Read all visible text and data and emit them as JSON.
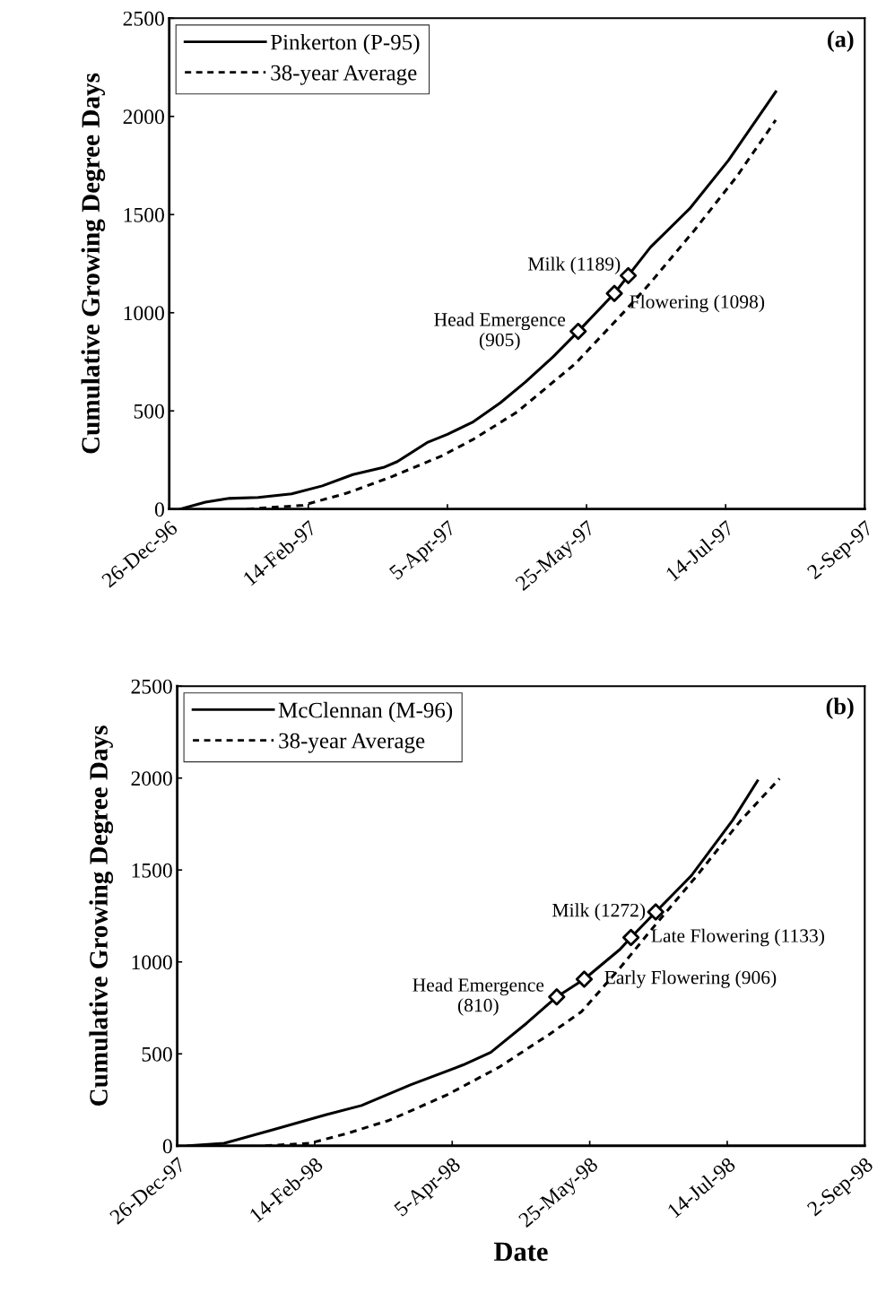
{
  "chart_data": [
    {
      "type": "line",
      "annotations": [
        "(a)",
        {
          "text": "Head Emergence\n(905)",
          "x": "1997-05-22",
          "y": 905
        },
        {
          "text": "Flowering (1098)",
          "x": "1997-06-04",
          "y": 1098
        },
        {
          "text": "Milk (1189)",
          "x": "1997-06-09",
          "y": 1189
        }
      ],
      "ylabel": "Cumulative Growing Degree Days",
      "xlim": [
        "1996-12-26",
        "1997-09-02"
      ],
      "xticks": [
        {
          "value": "1996-12-26",
          "label": "26-Dec-96"
        },
        {
          "value": "1997-02-14",
          "label": "14-Feb-97"
        },
        {
          "value": "1997-04-05",
          "label": "5-Apr-97"
        },
        {
          "value": "1997-05-25",
          "label": "25-May-97"
        },
        {
          "value": "1997-07-14",
          "label": "14-Jul-97"
        },
        {
          "value": "1997-09-02",
          "label": "2-Sep-97"
        }
      ],
      "ylim": [
        0,
        2500
      ],
      "yticks": [
        0,
        500,
        1000,
        1500,
        2000,
        2500
      ],
      "legend": "top left",
      "grid": false,
      "series": [
        {
          "name": "Pinkerton (P-95)",
          "color": "#000000",
          "line_style": "solid",
          "x": [
            "1996-12-30",
            "1997-01-08",
            "1997-01-16",
            "1997-01-27",
            "1997-02-08",
            "1997-02-19",
            "1997-03-02",
            "1997-03-13",
            "1997-03-18",
            "1997-03-29",
            "1997-04-05",
            "1997-04-14",
            "1997-04-24",
            "1997-05-03",
            "1997-05-13",
            "1997-05-22",
            "1997-06-04",
            "1997-06-09",
            "1997-06-17",
            "1997-07-01",
            "1997-07-15",
            "1997-08-01"
          ],
          "values": [
            0,
            35,
            54,
            59,
            78,
            118,
            176,
            212,
            242,
            341,
            381,
            442,
            541,
            647,
            776,
            905,
            1098,
            1189,
            1334,
            1529,
            1776,
            2125
          ]
        },
        {
          "name": "38-year Average",
          "color": "#000000",
          "line_style": "dashed",
          "x": [
            "1997-01-23",
            "1997-02-12",
            "1997-02-28",
            "1997-03-16",
            "1997-04-03",
            "1997-04-14",
            "1997-04-30",
            "1997-05-21",
            "1997-06-08",
            "1997-06-17",
            "1997-07-03",
            "1997-07-18",
            "1997-08-01"
          ],
          "values": [
            0,
            19,
            82,
            165,
            271,
            353,
            494,
            741,
            1012,
            1153,
            1424,
            1694,
            1981
          ]
        },
        {
          "type": "scatter",
          "color": "#000000",
          "marker": "diamond",
          "x": [
            "1997-05-22",
            "1997-06-04",
            "1997-06-09"
          ],
          "values": [
            905,
            1098,
            1189
          ]
        }
      ]
    },
    {
      "type": "line",
      "annotations": [
        "(b)",
        {
          "text": "Head Emergence\n(810)",
          "x": "1998-05-13",
          "y": 810
        },
        {
          "text": "Early Flowering (906)",
          "x": "1998-05-23",
          "y": 906
        },
        {
          "text": "Late Flowering (1133)",
          "x": "1998-06-09",
          "y": 1133
        },
        {
          "text": "Milk (1272)",
          "x": "1998-06-18",
          "y": 1272
        }
      ],
      "ylabel": "Cumulative Growing Degree Days",
      "xlabel": "Date",
      "xlim": [
        "1997-12-26",
        "1998-09-02"
      ],
      "xticks": [
        {
          "value": "1997-12-26",
          "label": "26-Dec-97"
        },
        {
          "value": "1998-02-14",
          "label": "14-Feb-98"
        },
        {
          "value": "1998-04-05",
          "label": "5-Apr-98"
        },
        {
          "value": "1998-05-25",
          "label": "25-May-98"
        },
        {
          "value": "1998-07-14",
          "label": "14-Jul-98"
        },
        {
          "value": "1998-09-02",
          "label": "2-Sep-98"
        }
      ],
      "ylim": [
        0,
        2500
      ],
      "yticks": [
        0,
        500,
        1000,
        1500,
        2000,
        2500
      ],
      "legend": "top left",
      "grid": false,
      "series": [
        {
          "name": "McClennan (M-96)",
          "color": "#000000",
          "line_style": "solid",
          "x": [
            "1997-12-30",
            "1998-01-12",
            "1998-01-30",
            "1998-02-18",
            "1998-03-03",
            "1998-03-21",
            "1998-04-09",
            "1998-04-19",
            "1998-05-02",
            "1998-05-13",
            "1998-05-23",
            "1998-06-05",
            "1998-06-09",
            "1998-06-18",
            "1998-07-01",
            "1998-07-16",
            "1998-07-25"
          ],
          "values": [
            0,
            13,
            88,
            168,
            219,
            332,
            440,
            508,
            666,
            810,
            906,
            1068,
            1133,
            1272,
            1470,
            1771,
            1985
          ]
        },
        {
          "name": "38-year Average",
          "color": "#000000",
          "line_style": "dashed",
          "x": [
            "1998-01-27",
            "1998-02-12",
            "1998-02-26",
            "1998-03-13",
            "1998-04-03",
            "1998-04-22",
            "1998-05-10",
            "1998-05-22",
            "1998-06-05",
            "1998-06-16",
            "1998-07-03",
            "1998-07-19",
            "1998-08-02"
          ],
          "values": [
            0,
            13,
            68,
            138,
            276,
            427,
            603,
            729,
            967,
            1168,
            1470,
            1771,
            1997
          ]
        },
        {
          "type": "scatter",
          "color": "#000000",
          "marker": "diamond",
          "x": [
            "1998-05-13",
            "1998-05-23",
            "1998-06-09",
            "1998-06-18"
          ],
          "values": [
            810,
            906,
            1133,
            1272
          ]
        }
      ]
    }
  ]
}
